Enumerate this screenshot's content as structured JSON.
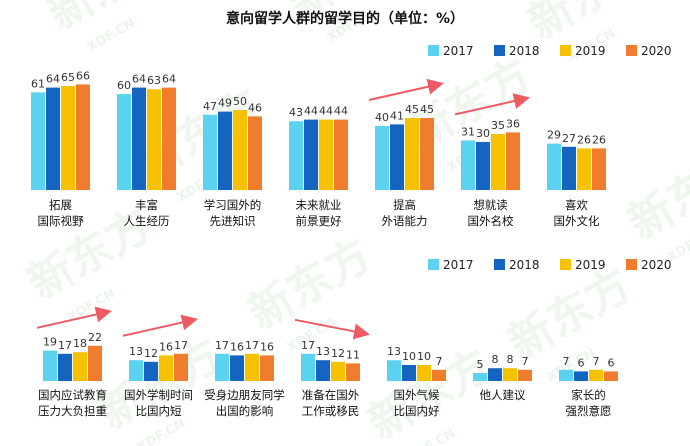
{
  "page_title": "意向留学人群的留学目的（单位：%）",
  "watermark": {
    "brand": "新东方",
    "domain": "XDF.CN"
  },
  "colors": {
    "2017": "#5bd3f0",
    "2018": "#1565c0",
    "2019": "#f6c200",
    "2020": "#ef7d2d",
    "arrow": "#ef5a63"
  },
  "chart_data": [
    {
      "type": "bar",
      "legend": [
        "2017",
        "2018",
        "2019",
        "2020"
      ],
      "ylim": [
        0,
        100
      ],
      "categories": [
        [
          "拓展",
          "国际视野"
        ],
        [
          "丰富",
          "人生经历"
        ],
        [
          "学习国外的",
          "先进知识"
        ],
        [
          "未来就业",
          "前景更好"
        ],
        [
          "提高",
          "外语能力"
        ],
        [
          "想就读",
          "国外名校"
        ],
        [
          "喜欢",
          "国外文化"
        ]
      ],
      "series": [
        {
          "name": "2017",
          "values": [
            61,
            60,
            47,
            43,
            40,
            31,
            29
          ]
        },
        {
          "name": "2018",
          "values": [
            64,
            64,
            49,
            44,
            41,
            30,
            27
          ]
        },
        {
          "name": "2019",
          "values": [
            65,
            63,
            50,
            44,
            45,
            35,
            26
          ]
        },
        {
          "name": "2020",
          "values": [
            66,
            64,
            46,
            44,
            45,
            36,
            26
          ]
        }
      ],
      "trend_arrows": [
        "提高 外语能力",
        "想就读 国外名校"
      ]
    },
    {
      "type": "bar",
      "legend": [
        "2017",
        "2018",
        "2019",
        "2020"
      ],
      "ylim": [
        0,
        100
      ],
      "categories": [
        [
          "国内应试教育",
          "压力大负担重"
        ],
        [
          "国外学制时间",
          "比国内短"
        ],
        [
          "受身边朋友同学",
          "出国的影响"
        ],
        [
          "准备在国外",
          "工作或移民"
        ],
        [
          "国外气候",
          "比国内好"
        ],
        [
          "他人建议",
          ""
        ],
        [
          "家长的",
          "强烈意愿"
        ]
      ],
      "series": [
        {
          "name": "2017",
          "values": [
            19,
            13,
            17,
            17,
            13,
            5,
            7
          ]
        },
        {
          "name": "2018",
          "values": [
            17,
            12,
            16,
            13,
            10,
            8,
            6
          ]
        },
        {
          "name": "2019",
          "values": [
            18,
            16,
            17,
            12,
            10,
            8,
            7
          ]
        },
        {
          "name": "2020",
          "values": [
            22,
            17,
            16,
            11,
            7,
            7,
            6
          ]
        }
      ],
      "trend_arrows": [
        "国内应试教育 压力大负担重",
        "国外学制时间 比国内短",
        "准备在国外 工作或移民"
      ]
    }
  ]
}
